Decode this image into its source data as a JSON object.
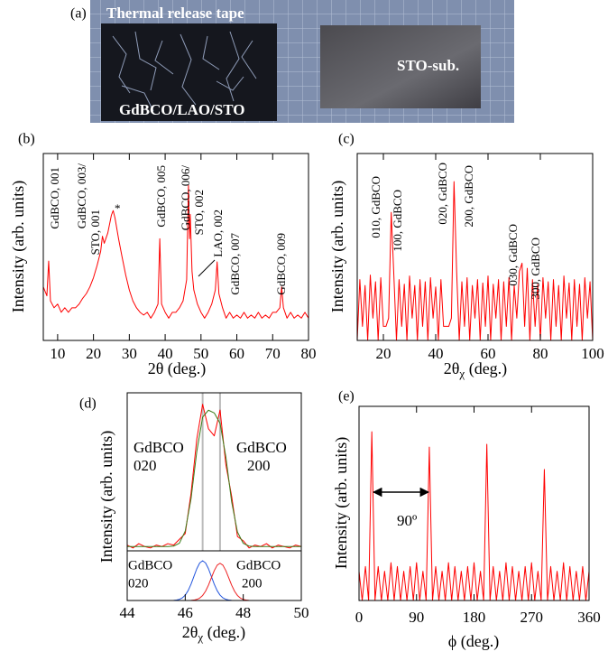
{
  "photo": {
    "label": "(a)",
    "texts": [
      "Thermal release tape",
      "GdBCO/LAO/STO",
      "STO-sub."
    ]
  },
  "chart_data": [
    {
      "type": "line",
      "panel_label": "(b)",
      "ylabel": "Intensity (arb. units)",
      "xlabel": [
        "2θ (deg.)"
      ],
      "xlim": [
        6,
        80
      ],
      "xticks": [
        10,
        20,
        30,
        40,
        50,
        60,
        70,
        80
      ],
      "ylim": [
        1,
        10000
      ],
      "log_y": true,
      "x": [
        6,
        7,
        7.5,
        8,
        9,
        10,
        11,
        12,
        13,
        14,
        15,
        16,
        17,
        18,
        19,
        20,
        21,
        22,
        22.5,
        23,
        24,
        25,
        25.5,
        26,
        27,
        28,
        29,
        30,
        31,
        32,
        33,
        34,
        35,
        36,
        37,
        38,
        38.5,
        39,
        40,
        41,
        42,
        43,
        44,
        45,
        46,
        46.5,
        46.8,
        47,
        47.5,
        48,
        49,
        50,
        51,
        52,
        53,
        54,
        54.5,
        55,
        56,
        57,
        58,
        59,
        60,
        61,
        62,
        63,
        64,
        65,
        66,
        67,
        68,
        69,
        70,
        71,
        72,
        72.5,
        73,
        74,
        75,
        76,
        77,
        78,
        79,
        80
      ],
      "series": [
        {
          "color": "#ff0000",
          "values": [
            14,
            9,
            50,
            7,
            5,
            6,
            4,
            5,
            4,
            5,
            5,
            6,
            8,
            10,
            14,
            22,
            40,
            80,
            170,
            120,
            200,
            480,
            600,
            420,
            150,
            60,
            25,
            12,
            7,
            5,
            4,
            3.5,
            4,
            3,
            4,
            6,
            150,
            6,
            4,
            3,
            4,
            4,
            5,
            7,
            20,
            2100,
            150,
            500,
            30,
            12,
            6,
            4,
            3,
            4,
            6,
            12,
            48,
            10,
            5,
            3,
            4,
            3,
            3.5,
            3,
            4,
            3,
            3.5,
            3,
            4,
            3,
            3.5,
            3,
            4,
            4,
            5,
            14,
            5,
            3,
            4,
            3,
            3.5,
            3,
            4,
            3
          ]
        }
      ],
      "annotations": [
        {
          "text": "GdBCO, 001"
        },
        {
          "text": "GdBCO, 003/"
        },
        {
          "text": "STO, 001"
        },
        {
          "text": "*"
        },
        {
          "text": "GdBCO, 005"
        },
        {
          "text": "GdBCO, 006/"
        },
        {
          "text": "STO, 002"
        },
        {
          "text": "LAO, 002"
        },
        {
          "text": "GdBCO, 007"
        },
        {
          "text": "GdBCO, 009"
        }
      ]
    },
    {
      "type": "line",
      "panel_label": "(c)",
      "ylabel": "Intensity (arb. units)",
      "xlabel": [
        "2θ",
        "χ",
        " (deg.)"
      ],
      "xlim": [
        10,
        100
      ],
      "xticks": [
        20,
        40,
        60,
        80,
        100
      ],
      "ylim": [
        1,
        10000
      ],
      "log_y": true,
      "x": [
        10,
        11,
        12,
        13,
        14,
        15,
        16,
        17,
        18,
        19,
        20,
        21,
        22,
        23,
        24,
        25,
        26,
        27,
        28,
        29,
        30,
        31,
        32,
        33,
        34,
        35,
        36,
        37,
        38,
        39,
        40,
        41,
        42,
        43,
        44,
        45,
        46,
        47,
        48,
        49,
        50,
        51,
        52,
        53,
        54,
        55,
        56,
        57,
        58,
        59,
        60,
        61,
        62,
        63,
        64,
        65,
        66,
        67,
        68,
        69,
        70,
        71,
        72,
        73,
        74,
        75,
        76,
        77,
        78,
        79,
        80,
        81,
        82,
        83,
        84,
        85,
        86,
        87,
        88,
        89,
        90,
        91,
        92,
        93,
        94,
        95,
        96,
        97,
        98,
        99,
        100
      ],
      "series": [
        {
          "color": "#ff0000",
          "values": [
            1,
            20,
            2,
            15,
            1,
            25,
            3,
            18,
            1,
            22,
            2,
            2,
            3,
            550,
            25,
            1,
            20,
            2,
            16,
            1,
            24,
            3,
            15,
            1,
            20,
            2,
            18,
            1,
            22,
            3,
            14,
            1,
            20,
            2,
            2,
            2,
            3,
            2500,
            30,
            1,
            18,
            2,
            22,
            1,
            15,
            3,
            20,
            1,
            17,
            2,
            24,
            1,
            16,
            3,
            20,
            1,
            18,
            2,
            22,
            1,
            15,
            3,
            30,
            45,
            2,
            35,
            1,
            20,
            2,
            16,
            1,
            22,
            3,
            18,
            1,
            20,
            2,
            15,
            1,
            24,
            3,
            17,
            1,
            20,
            2,
            16,
            1,
            22,
            3,
            18,
            1
          ]
        }
      ],
      "annotations": [
        {
          "text": "010, GdBCO",
          "color": "#1a4fe0"
        },
        {
          "text": "100, GdBCO",
          "color": "#e8120c"
        },
        {
          "text": "020, GdBCO",
          "color": "#1a4fe0"
        },
        {
          "text": "200, GdBCO",
          "color": "#e8120c"
        },
        {
          "text": "030, GdBCO",
          "color": "#1a4fe0"
        },
        {
          "text": "300, GdBCO",
          "color": "#e8120c"
        }
      ]
    },
    {
      "type": "line",
      "panel_label": "(d)",
      "ylabel": "Intensity (arb. units)",
      "xlim": [
        44,
        50
      ],
      "ylim": [
        0,
        110
      ],
      "log_y": false,
      "vlines": [
        46.6,
        47.2
      ],
      "x": [
        44.0,
        44.2,
        44.4,
        44.6,
        44.8,
        45.0,
        45.2,
        45.4,
        45.6,
        45.8,
        46.0,
        46.2,
        46.4,
        46.6,
        46.8,
        47.0,
        47.2,
        47.4,
        47.6,
        47.8,
        48.0,
        48.2,
        48.4,
        48.6,
        48.8,
        49.0,
        49.2,
        49.4,
        49.6,
        49.8,
        50.0
      ],
      "series": [
        {
          "color": "#ff0000",
          "values": [
            4,
            2,
            5,
            3,
            2,
            4,
            3,
            5,
            4,
            8,
            12,
            40,
            78,
            102,
            85,
            80,
            98,
            60,
            38,
            10,
            7,
            2,
            4,
            3,
            5,
            2,
            4,
            3,
            2,
            4,
            3
          ]
        },
        {
          "color": "#3a7d1a",
          "values": [
            3,
            3,
            3,
            3,
            3,
            3,
            3,
            3,
            3.3,
            5.3,
            13.8,
            36.2,
            69.3,
            93.1,
            97.9,
            96,
            88.8,
            65.4,
            34.1,
            13.1,
            5.2,
            3.3,
            3,
            3,
            3,
            3,
            3,
            3,
            3,
            3,
            3
          ]
        }
      ],
      "annotations": [
        {
          "text": "GdBCO",
          "color": "#1a4fe0"
        },
        {
          "text": "020",
          "color": "#1a4fe0"
        },
        {
          "text": "GdBCO",
          "color": "#e8120c"
        },
        {
          "text": "200",
          "color": "#e8120c"
        }
      ]
    },
    {
      "type": "line",
      "xlabel": [
        "2θ",
        "χ",
        " (deg.)"
      ],
      "xlim": [
        44,
        50
      ],
      "xticks": [
        44,
        46,
        48,
        50
      ],
      "ylim": [
        0,
        100
      ],
      "log_y": false,
      "x": [
        45.0,
        45.1,
        45.2,
        45.3,
        45.4,
        45.5,
        45.6,
        45.7,
        45.8,
        45.9,
        46.0,
        46.1,
        46.2,
        46.3,
        46.4,
        46.5,
        46.6,
        46.7,
        46.8,
        46.9,
        47.0,
        47.1,
        47.2,
        47.3,
        47.4,
        47.5,
        47.6,
        47.7,
        47.8,
        47.9,
        48.0,
        48.1,
        48.2,
        48.3,
        48.4,
        48.5,
        48.6,
        48.7,
        48.8,
        48.9,
        49.0
      ],
      "series": [
        {
          "color": "#2255dd",
          "values": [
            0,
            0,
            0,
            0,
            0,
            0,
            0.3,
            0.9,
            2.3,
            5.3,
            10.8,
            19.9,
            32.9,
            48.6,
            64.1,
            75.7,
            80,
            75.7,
            64.1,
            48.6,
            32.9,
            19.9,
            10.8,
            5.3,
            2.3,
            0.9,
            0.3,
            0,
            0,
            0,
            0,
            0,
            0,
            0,
            0,
            0,
            0,
            0,
            0,
            0,
            0
          ]
        },
        {
          "color": "#ee2222",
          "values": [
            0,
            0,
            0,
            0,
            0,
            0,
            0,
            0,
            0,
            0,
            0,
            0,
            0.3,
            0.8,
            2.2,
            4.9,
            10.1,
            18.7,
            30.8,
            45.5,
            60.1,
            71,
            75,
            71,
            60.1,
            45.5,
            30.8,
            18.7,
            10.1,
            4.9,
            2.2,
            0.8,
            0.3,
            0,
            0,
            0,
            0,
            0,
            0,
            0,
            0
          ]
        }
      ],
      "annotations": [
        {
          "text": "GdBCO",
          "color": "#1a4fe0"
        },
        {
          "text": "020",
          "color": "#1a4fe0"
        },
        {
          "text": "GdBCO",
          "color": "#e8120c"
        },
        {
          "text": "200",
          "color": "#e8120c"
        }
      ]
    },
    {
      "type": "line",
      "panel_label": "(e)",
      "ylabel": "Intensity (arb. units)",
      "xlabel": [
        "ϕ (deg.)"
      ],
      "xlim": [
        0,
        360
      ],
      "xticks": [
        0,
        90,
        180,
        270,
        360
      ],
      "ylim": [
        1,
        10000
      ],
      "log_y": true,
      "x": [
        0,
        5,
        10,
        15,
        20,
        25,
        30,
        35,
        40,
        45,
        50,
        55,
        60,
        65,
        70,
        75,
        80,
        85,
        90,
        95,
        100,
        105,
        110,
        115,
        120,
        125,
        130,
        135,
        140,
        145,
        150,
        155,
        160,
        165,
        170,
        175,
        180,
        185,
        190,
        195,
        200,
        205,
        210,
        215,
        220,
        225,
        230,
        235,
        240,
        245,
        250,
        255,
        260,
        265,
        270,
        275,
        280,
        285,
        290,
        295,
        300,
        305,
        310,
        315,
        320,
        325,
        330,
        335,
        340,
        345,
        350,
        355,
        360
      ],
      "series": [
        {
          "color": "#ff0000",
          "values": [
            4,
            1,
            5,
            1,
            3000,
            1,
            5,
            1,
            4,
            1,
            6,
            1,
            5,
            1,
            4,
            1,
            5,
            1,
            6,
            1,
            4,
            1,
            1450,
            1,
            5,
            1,
            4,
            1,
            6,
            1,
            5,
            1,
            4,
            1,
            5,
            1,
            6,
            1,
            4,
            1,
            1650,
            1,
            5,
            1,
            4,
            1,
            6,
            1,
            5,
            1,
            4,
            1,
            5,
            1,
            6,
            1,
            4,
            1,
            500,
            1,
            5,
            1,
            4,
            1,
            6,
            1,
            5,
            1,
            4,
            1,
            5,
            1,
            4
          ]
        }
      ],
      "annotations": [
        {
          "text": "90º"
        }
      ]
    }
  ]
}
